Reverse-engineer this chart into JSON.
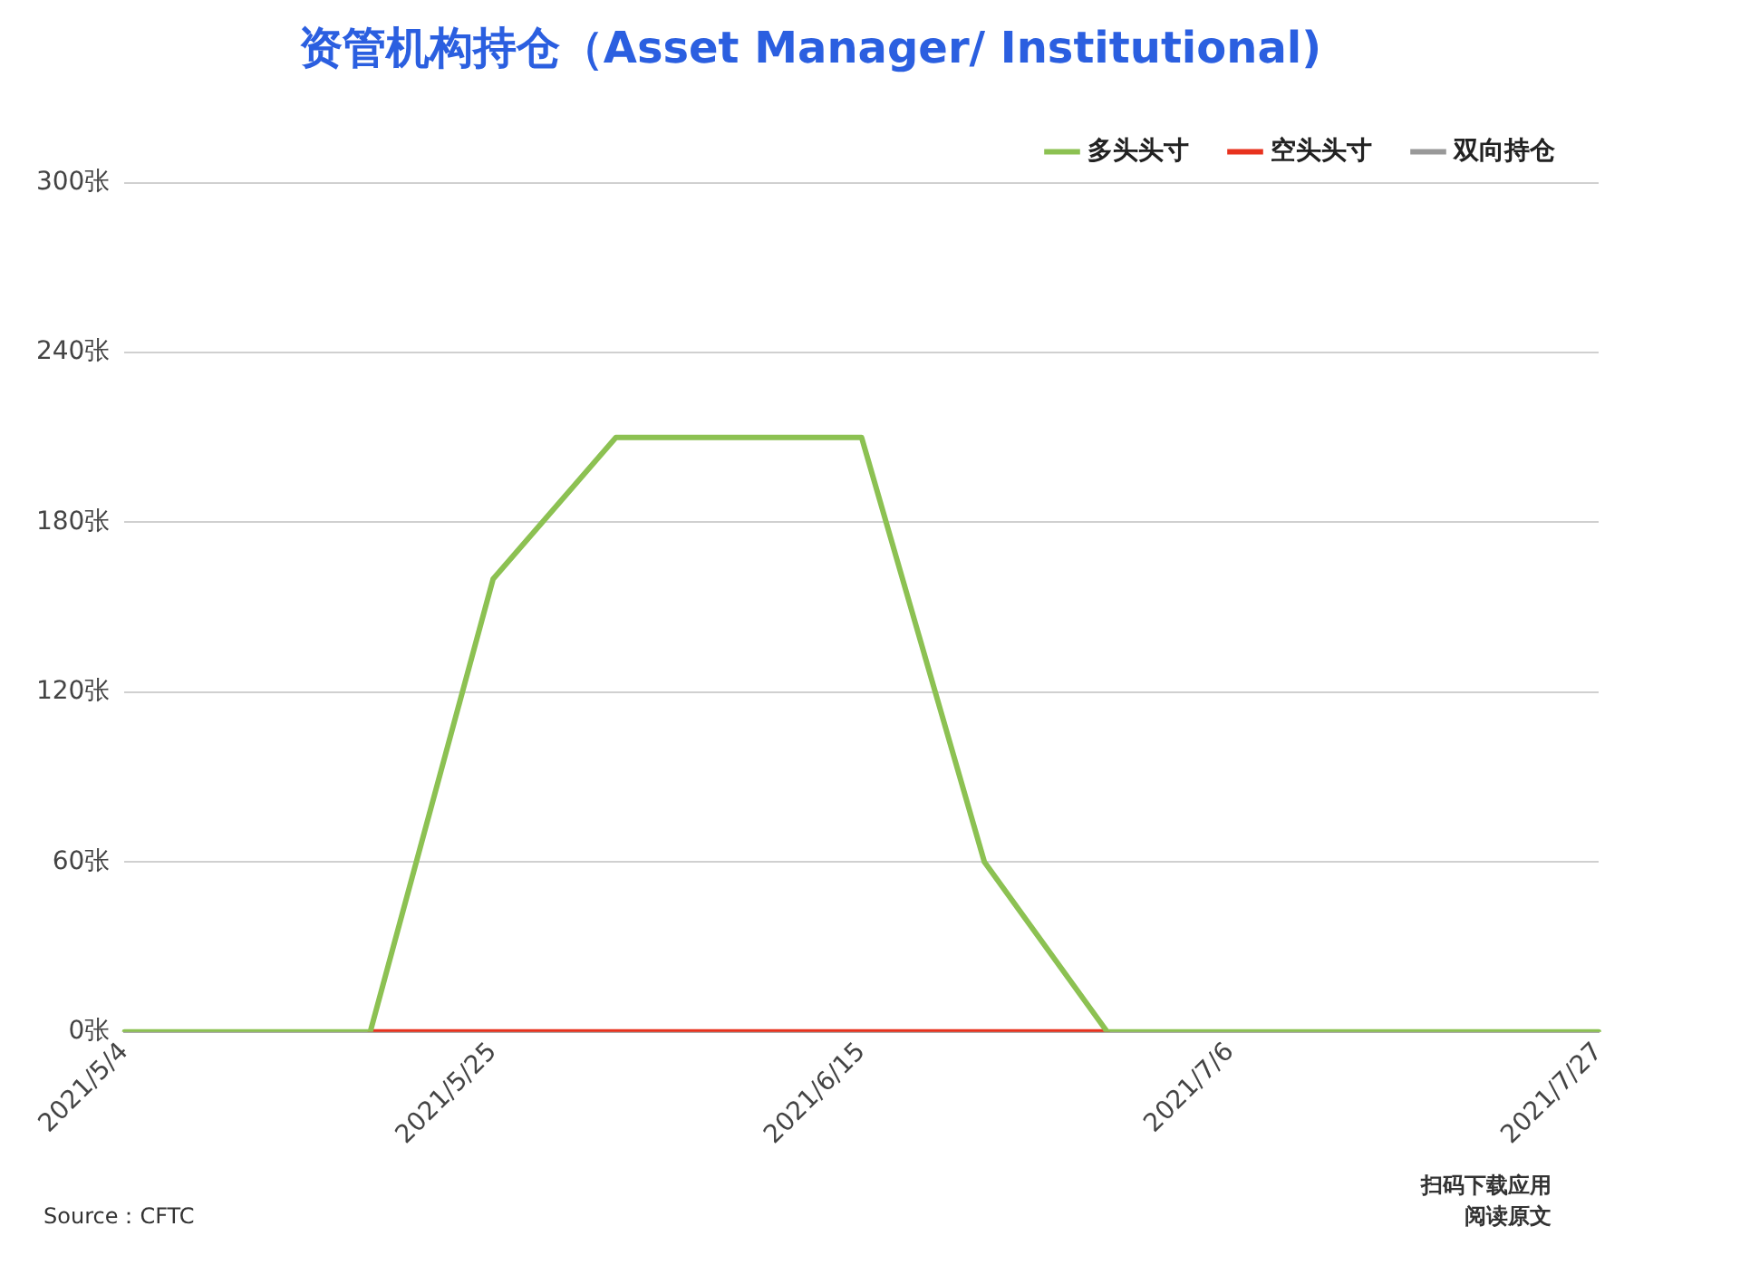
{
  "chart_data": {
    "type": "line",
    "title": "资管机构持仓（Asset Manager/ Institutional)",
    "categories": [
      "2021/5/4",
      null,
      null,
      "2021/5/25",
      null,
      null,
      "2021/6/15",
      null,
      null,
      "2021/7/6",
      null,
      null,
      "2021/7/27"
    ],
    "series": [
      {
        "name": "多头头寸",
        "color": "#8cc152",
        "values": [
          0,
          0,
          0,
          160,
          210,
          210,
          210,
          60,
          0,
          0,
          0,
          0,
          0
        ]
      },
      {
        "name": "空头头寸",
        "color": "#e8321e",
        "values": [
          null,
          null,
          0,
          0,
          0,
          0,
          0,
          0,
          0,
          null,
          null,
          null,
          null
        ]
      },
      {
        "name": "双向持仓",
        "color": "#999999",
        "values": [
          null,
          null,
          null,
          null,
          null,
          null,
          null,
          null,
          null,
          null,
          null,
          null,
          null
        ]
      }
    ],
    "ylim": [
      0,
      300
    ],
    "yticks": [
      {
        "value": 0,
        "label": "0张"
      },
      {
        "value": 60,
        "label": "60张"
      },
      {
        "value": 120,
        "label": "120张"
      },
      {
        "value": 180,
        "label": "180张"
      },
      {
        "value": 240,
        "label": "240张"
      },
      {
        "value": 300,
        "label": "300张"
      }
    ],
    "grid": "y",
    "legend": "top right",
    "marker": "none",
    "line_style": "solid",
    "annotations": [
      "Source：CFTC",
      "扫码下载应用",
      "阅读原文"
    ]
  }
}
